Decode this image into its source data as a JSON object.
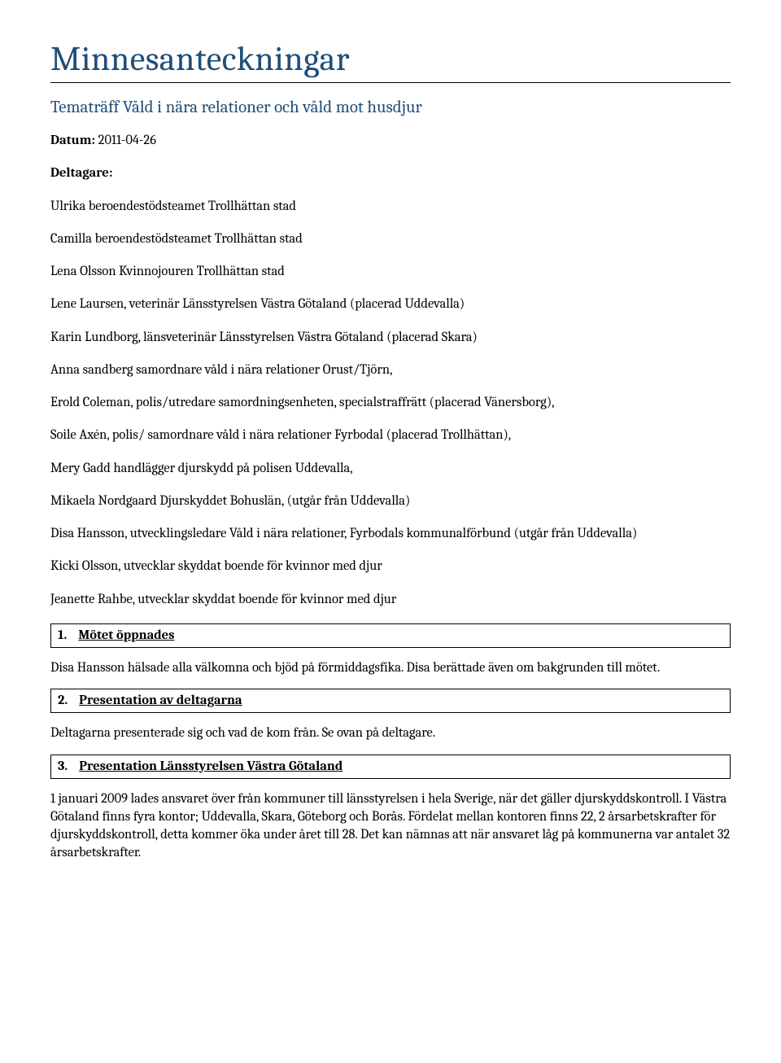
{
  "title": "Minnesanteckningar",
  "subtitle": "Tematräff Våld i nära relationer och våld mot husdjur",
  "date_label": "Datum:",
  "date_value": "2011-04-26",
  "participants_label": "Deltagare:",
  "participants": [
    "Ulrika beroendestödsteamet Trollhättan stad",
    "Camilla beroendestödsteamet Trollhättan stad",
    "Lena Olsson Kvinnojouren Trollhättan stad",
    "Lene Laursen, veterinär Länsstyrelsen Västra Götaland (placerad Uddevalla)",
    "Karin Lundborg, länsveterinär Länsstyrelsen Västra Götaland (placerad Skara)",
    "Anna sandberg samordnare våld i nära relationer Orust/Tjörn,",
    "Erold Coleman, polis/utredare samordningsenheten, specialstraffrätt (placerad Vänersborg),",
    "Soile Axén, polis/ samordnare våld i nära relationer Fyrbodal (placerad Trollhättan),",
    " Mery Gadd handlägger djurskydd på polisen Uddevalla,",
    " Mikaela Nordgaard Djurskyddet Bohuslän, (utgår från Uddevalla)",
    "Disa Hansson, utvecklingsledare Våld i nära relationer, Fyrbodals kommunalförbund (utgår från Uddevalla)",
    "Kicki Olsson, utvecklar skyddat boende för kvinnor med djur",
    "Jeanette Rahbe, utvecklar skyddat boende för kvinnor med djur"
  ],
  "sections": [
    {
      "num": "1.",
      "heading": "Mötet öppnades",
      "body": "Disa Hansson hälsade alla välkomna och bjöd på förmiddagsfika. Disa berättade även om bakgrunden till mötet."
    },
    {
      "num": "2.",
      "heading": "Presentation av deltagarna",
      "body": "Deltagarna presenterade sig och vad de kom från. Se ovan på deltagare."
    },
    {
      "num": "3.",
      "heading": "Presentation Länsstyrelsen Västra Götaland",
      "body": "1 januari 2009 lades ansvaret över från kommuner till länsstyrelsen i hela Sverige, när det gäller djurskyddskontroll. I Västra Götaland finns fyra kontor; Uddevalla, Skara, Göteborg och Borås. Fördelat mellan kontoren finns 22, 2 årsarbetskrafter för djurskyddskontroll, detta kommer öka under året till 28. Det kan nämnas att när ansvaret låg på kommunerna var antalet 32 årsarbetskrafter."
    }
  ]
}
